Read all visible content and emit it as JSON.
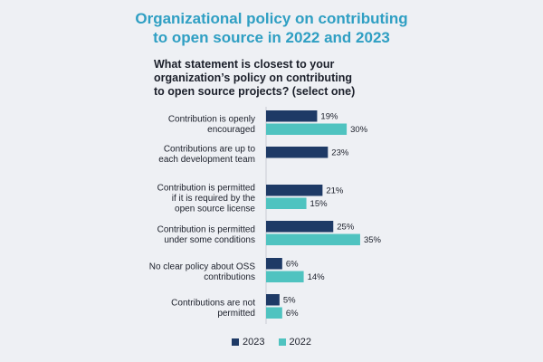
{
  "title_lines": [
    "Organizational policy on contributing",
    "to open source in 2022 and 2023"
  ],
  "question_lines": [
    "What statement is closest to your",
    "organization’s policy on contributing",
    "to open source projects? (select one)"
  ],
  "colors": {
    "series_2023": "#1e3a66",
    "series_2022": "#4fc3c0",
    "title": "#2f9fc3"
  },
  "chart_data": {
    "type": "bar",
    "orientation": "horizontal",
    "title": "Organizational policy on contributing to open source in 2022 and 2023",
    "categories": [
      [
        "Contribution is openly",
        "encouraged"
      ],
      [
        "Contributions are up to",
        "each development team"
      ],
      [
        "Contribution is permitted",
        "if it is required by the",
        "open source license"
      ],
      [
        "Contribution is permitted",
        "under some conditions"
      ],
      [
        "No clear policy about OSS",
        "contributions"
      ],
      [
        "Contributions are not",
        "permitted"
      ]
    ],
    "series": [
      {
        "name": "2023",
        "values": [
          19,
          23,
          21,
          25,
          6,
          5
        ]
      },
      {
        "name": "2022",
        "values": [
          30,
          null,
          15,
          35,
          14,
          6
        ]
      }
    ],
    "value_suffix": "%",
    "xlim": [
      0,
      40
    ]
  },
  "legend": [
    {
      "label": "2023"
    },
    {
      "label": "2022"
    }
  ]
}
